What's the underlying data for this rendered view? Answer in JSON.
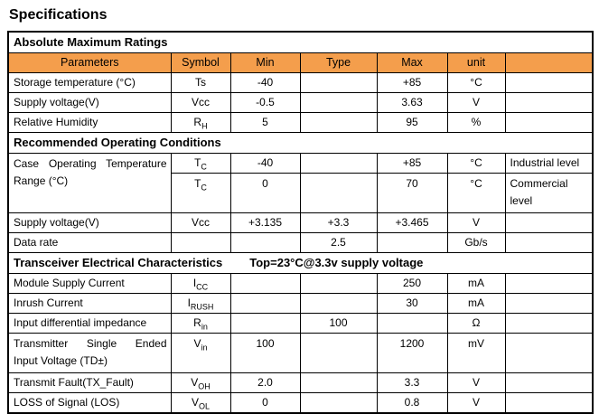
{
  "page_title": "Specifications",
  "colors": {
    "header_bg": "#F49E4C",
    "border": "#000000",
    "text": "#000000"
  },
  "table": {
    "column_headers": {
      "parameters": "Parameters",
      "symbol": "Symbol",
      "min": "Min",
      "type": "Type",
      "max": "Max",
      "unit": "unit",
      "notes": ""
    },
    "rows": [
      {
        "kind": "section",
        "label": "Absolute Maximum Ratings",
        "condition": ""
      },
      {
        "kind": "columns"
      },
      {
        "kind": "data",
        "param_lines": [
          "Storage temperature (°C)"
        ],
        "symbol": {
          "base": "Ts",
          "sub": ""
        },
        "min": "-40",
        "typ": "",
        "max": "+85",
        "unit": "°C",
        "note_lines": []
      },
      {
        "kind": "data",
        "param_lines": [
          "Supply voltage(V)"
        ],
        "symbol": {
          "base": "Vcc",
          "sub": ""
        },
        "min": "-0.5",
        "typ": "",
        "max": "3.63",
        "unit": "V",
        "note_lines": []
      },
      {
        "kind": "data",
        "param_lines": [
          "Relative Humidity"
        ],
        "symbol": {
          "base": "R",
          "sub": "H"
        },
        "min": "5",
        "typ": "",
        "max": "95",
        "unit": "%",
        "note_lines": []
      },
      {
        "kind": "section",
        "label": "Recommended Operating Conditions",
        "condition": ""
      },
      {
        "kind": "data",
        "param_lines": [
          "Case Operating Temperature",
          "Range (°C)"
        ],
        "param_rowspan": 2,
        "justify_param": true,
        "symbol": {
          "base": "T",
          "sub": "C"
        },
        "min": "-40",
        "typ": "",
        "max": "+85",
        "unit": "°C",
        "note_lines": [
          "Industrial level"
        ]
      },
      {
        "kind": "data",
        "param_skip": true,
        "tall": true,
        "symbol": {
          "base": "T",
          "sub": "C"
        },
        "min": "0",
        "typ": "",
        "max": "70",
        "unit": "°C",
        "note_lines": [
          "Commercial",
          "level"
        ]
      },
      {
        "kind": "data",
        "param_lines": [
          "Supply voltage(V)"
        ],
        "symbol": {
          "base": "Vcc",
          "sub": ""
        },
        "min": "+3.135",
        "typ": "+3.3",
        "max": "+3.465",
        "unit": "V",
        "note_lines": []
      },
      {
        "kind": "data",
        "param_lines": [
          "Data rate"
        ],
        "symbol": {
          "base": "",
          "sub": ""
        },
        "min": "",
        "typ": "2.5",
        "max": "",
        "unit": "Gb/s",
        "note_lines": []
      },
      {
        "kind": "section",
        "label": "Transceiver Electrical Characteristics",
        "condition": "Top=23°C@3.3v supply voltage"
      },
      {
        "kind": "data",
        "param_lines": [
          "Module Supply Current"
        ],
        "symbol": {
          "base": "I",
          "sub": "CC"
        },
        "min": "",
        "typ": "",
        "max": "250",
        "unit": "mA",
        "note_lines": []
      },
      {
        "kind": "data",
        "param_lines": [
          "Inrush Current"
        ],
        "symbol": {
          "base": "I",
          "sub": "RUSH"
        },
        "min": "",
        "typ": "",
        "max": "30",
        "unit": "mA",
        "note_lines": []
      },
      {
        "kind": "data",
        "param_lines": [
          "Input differential impedance"
        ],
        "symbol": {
          "base": "R",
          "sub": "in"
        },
        "min": "",
        "typ": "100",
        "max": "",
        "unit": "Ω",
        "note_lines": []
      },
      {
        "kind": "data",
        "param_lines": [
          "Transmitter Single Ended",
          "Input Voltage (TD±)"
        ],
        "justify_param": true,
        "tall": true,
        "symbol": {
          "base": "V",
          "sub": "in"
        },
        "min": "100",
        "typ": "",
        "max": "1200",
        "unit": "mV",
        "note_lines": []
      },
      {
        "kind": "data",
        "param_lines": [
          "Transmit Fault(TX_Fault)"
        ],
        "symbol": {
          "base": "V",
          "sub": "OH"
        },
        "min": "2.0",
        "typ": "",
        "max": "3.3",
        "unit": "V",
        "note_lines": []
      },
      {
        "kind": "data",
        "param_lines": [
          "LOSS of Signal (LOS)"
        ],
        "symbol": {
          "base": "V",
          "sub": "OL"
        },
        "min": "0",
        "typ": "",
        "max": "0.8",
        "unit": "V",
        "note_lines": []
      }
    ]
  }
}
